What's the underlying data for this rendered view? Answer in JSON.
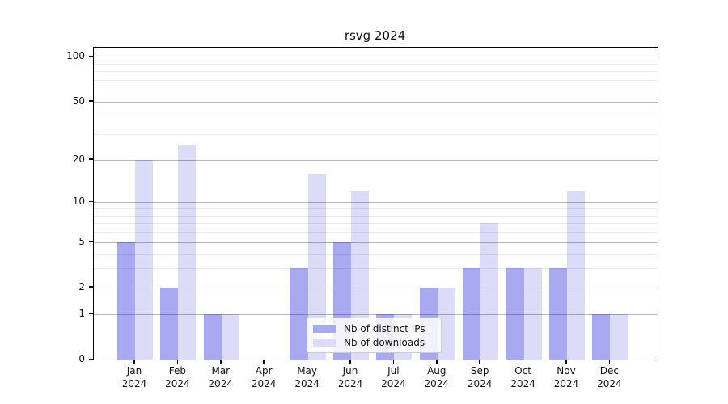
{
  "title": "rsvg 2024",
  "chart_data": {
    "type": "bar",
    "title": "rsvg 2024",
    "categories": [
      "Jan",
      "Feb",
      "Mar",
      "Apr",
      "May",
      "Jun",
      "Jul",
      "Aug",
      "Sep",
      "Oct",
      "Nov",
      "Dec"
    ],
    "category_year": "2024",
    "series": [
      {
        "name": "Nb of distinct IPs",
        "color": "#a9a9f1",
        "values": [
          5,
          2,
          1,
          0,
          3,
          5,
          1,
          2,
          3,
          3,
          3,
          1
        ]
      },
      {
        "name": "Nb of downloads",
        "color": "#dcdcf8",
        "values": [
          20,
          25,
          1,
          0,
          16,
          12,
          1,
          2,
          7,
          3,
          12,
          1
        ]
      }
    ],
    "y_scale": "log10(1+x)",
    "ylim": [
      0,
      115
    ],
    "y_ticks_major": [
      0,
      1,
      2,
      5,
      10,
      20,
      50,
      100
    ],
    "y_ticks_minor": [
      3,
      4,
      6,
      7,
      8,
      9,
      30,
      40,
      60,
      70,
      80,
      90
    ],
    "grid": "on",
    "legend_position": "lower-center",
    "colors": {
      "major_grid": "rgba(0,0,0,0.28)",
      "minor_grid": "rgba(0,0,0,0.08)",
      "spine": "#000000",
      "background": "#ffffff"
    }
  }
}
